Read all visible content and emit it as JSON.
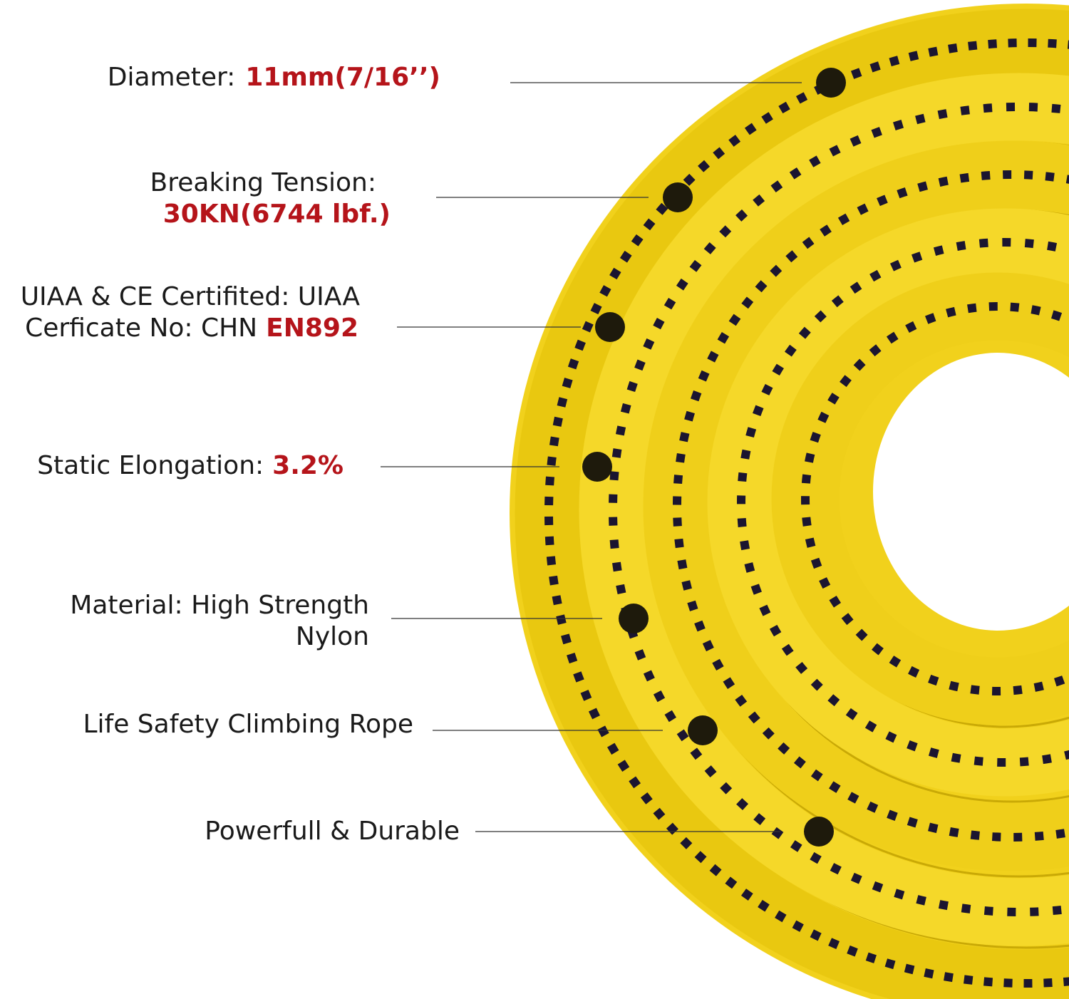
{
  "callouts": [
    {
      "lines": [
        "Diameter:"
      ],
      "value": "11mm(7/16’’)"
    },
    {
      "lines": [
        "Breaking Tension:"
      ],
      "value": "30KN(6744 lbf.)"
    },
    {
      "lines": [
        "UIAA & CE Certifited: UIAA",
        "Cerficate No: CHN"
      ],
      "value": "EN892"
    },
    {
      "lines": [
        "Static Elongation:"
      ],
      "value": "3.2%"
    },
    {
      "lines": [
        "Material: High Strength",
        "Nylon"
      ]
    },
    {
      "lines": [
        "Life Safety Climbing Rope"
      ]
    },
    {
      "lines": [
        "Powerfull & Durable"
      ]
    }
  ]
}
